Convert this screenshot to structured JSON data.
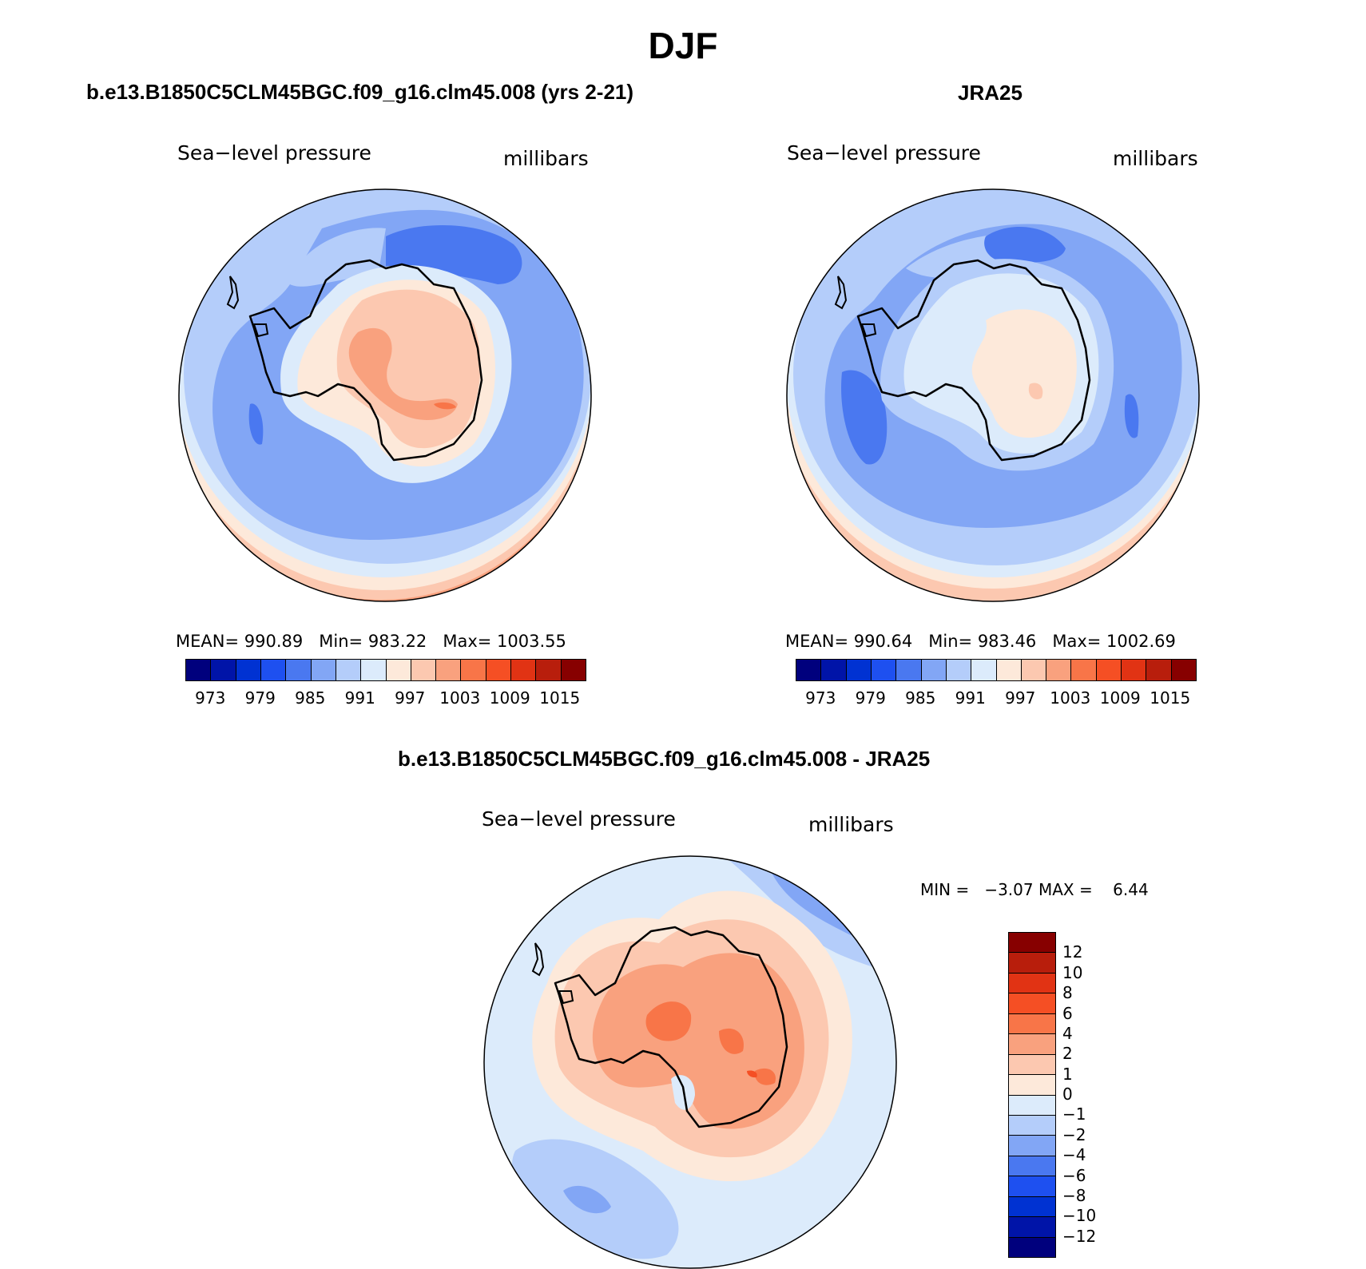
{
  "figure": {
    "title": "DJF"
  },
  "panels": {
    "model": {
      "title": "b.e13.B1850C5CLM45BGC.f09_g16.clm45.008 (yrs 2-21)",
      "variable": "Sea−level pressure",
      "units": "millibars",
      "stats": {
        "mean_label": "MEAN=",
        "mean": "990.89",
        "min_label": "Min=",
        "min": "983.22",
        "max_label": "Max=",
        "max": "1003.55"
      }
    },
    "obs": {
      "title": "JRA25",
      "variable": "Sea−level pressure",
      "units": "millibars",
      "stats": {
        "mean_label": "MEAN=",
        "mean": "990.64",
        "min_label": "Min=",
        "min": "983.46",
        "max_label": "Max=",
        "max": "1002.69"
      }
    },
    "diff": {
      "title": "b.e13.B1850C5CLM45BGC.f09_g16.clm45.008 - JRA25",
      "variable": "Sea−level pressure",
      "units": "millibars",
      "stats": {
        "min_label": "MIN =",
        "min": "−3.07",
        "max_label": "MAX =",
        "max": "6.44"
      }
    }
  },
  "colorbars": {
    "abs": {
      "colors": [
        "#00007d",
        "#0014a8",
        "#0032d2",
        "#1e50f0",
        "#4a78f0",
        "#82a6f5",
        "#b4cdfa",
        "#dcebfb",
        "#fde9da",
        "#fcc8b0",
        "#f9a17e",
        "#f87548",
        "#f54f24",
        "#e13314",
        "#b81e0c",
        "#870000"
      ],
      "tick_labels": [
        "973",
        "979",
        "985",
        "991",
        "997",
        "1003",
        "1009",
        "1015"
      ]
    },
    "diff": {
      "colors": [
        "#870000",
        "#b81e0c",
        "#e13314",
        "#f54f24",
        "#f87548",
        "#f9a17e",
        "#fcc8b0",
        "#fde9da",
        "#dcebfb",
        "#b4cdfa",
        "#82a6f5",
        "#4a78f0",
        "#1e50f0",
        "#0032d2",
        "#0014a8",
        "#00007d"
      ],
      "tick_labels": [
        "12",
        "10",
        "8",
        "6",
        "4",
        "2",
        "1",
        "0",
        "−1",
        "−2",
        "−4",
        "−6",
        "−8",
        "−10",
        "−12"
      ]
    }
  },
  "chart_data": {
    "type": "contour-map",
    "projection": "south-polar-stereographic",
    "season": "DJF",
    "variable": "Sea-level pressure",
    "units": "millibars",
    "maps": [
      {
        "name": "model",
        "mean": 990.89,
        "min": 983.22,
        "max": 1003.55,
        "contour_levels": [
          973,
          976,
          979,
          982,
          985,
          988,
          991,
          994,
          997,
          1000,
          1003,
          1006,
          1009,
          1012,
          1015
        ]
      },
      {
        "name": "JRA25",
        "mean": 990.64,
        "min": 983.46,
        "max": 1002.69,
        "contour_levels": [
          973,
          976,
          979,
          982,
          985,
          988,
          991,
          994,
          997,
          1000,
          1003,
          1006,
          1009,
          1012,
          1015
        ]
      },
      {
        "name": "model - JRA25",
        "min": -3.07,
        "max": 6.44,
        "contour_levels": [
          -12,
          -10,
          -8,
          -6,
          -4,
          -2,
          -1,
          0,
          1,
          2,
          4,
          6,
          8,
          10,
          12
        ]
      }
    ]
  }
}
